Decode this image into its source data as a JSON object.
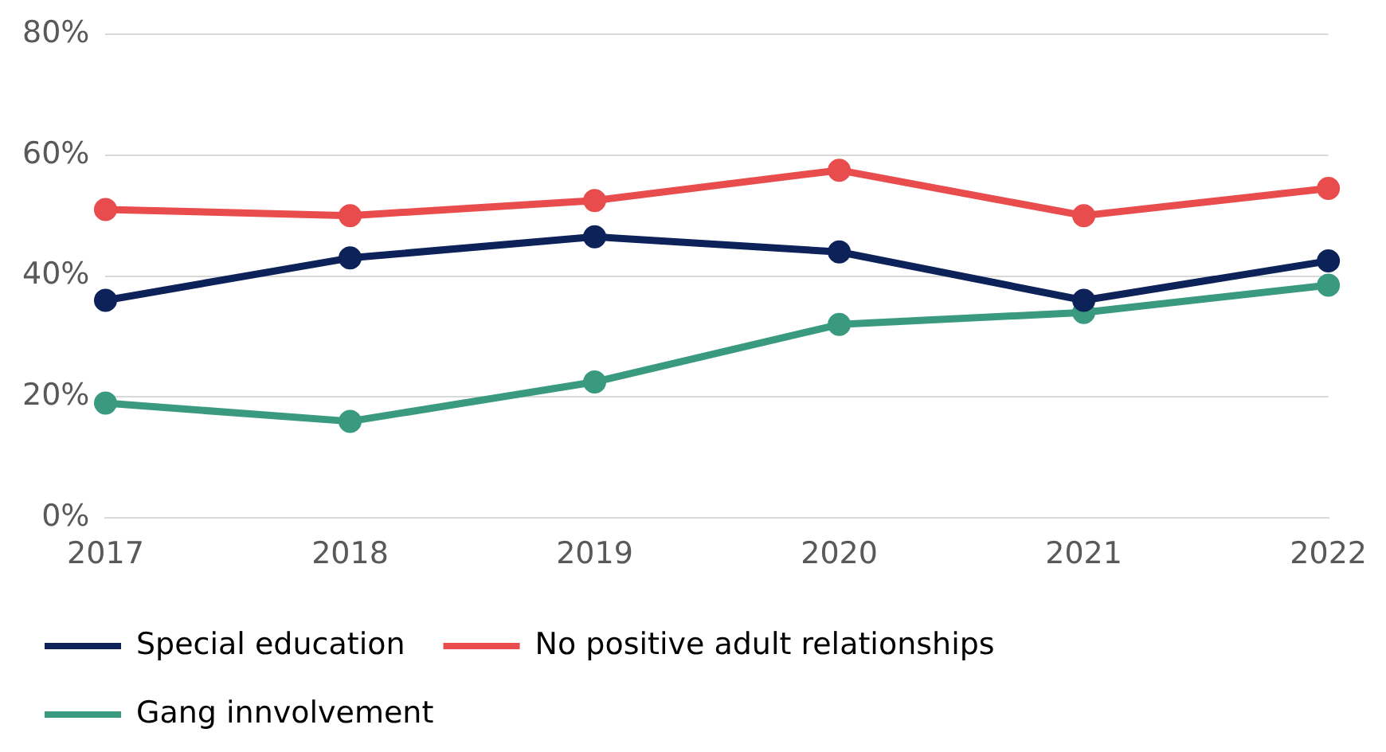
{
  "chart_data": {
    "type": "line",
    "categories": [
      "2017",
      "2018",
      "2019",
      "2020",
      "2021",
      "2022"
    ],
    "series": [
      {
        "name": "Special education",
        "color": "#0d2259",
        "values": [
          36,
          43,
          46.5,
          44,
          36,
          42.5
        ]
      },
      {
        "name": "No positive adult relationships",
        "color": "#e84c4c",
        "values": [
          51,
          50,
          52.5,
          57.5,
          50,
          54.5
        ]
      },
      {
        "name": "Gang innvolvement",
        "color": "#3a9a80",
        "values": [
          19,
          16,
          22.5,
          32,
          34,
          38.5
        ]
      }
    ],
    "ylim": [
      0,
      80
    ],
    "yticks": [
      {
        "value": 0,
        "label": "0%"
      },
      {
        "value": 20,
        "label": "20%"
      },
      {
        "value": 40,
        "label": "40%"
      },
      {
        "value": 60,
        "label": "60%"
      },
      {
        "value": 80,
        "label": "80%"
      }
    ],
    "grid": "y",
    "legend": "bottom",
    "marker": "circle",
    "line_style": "solid"
  }
}
